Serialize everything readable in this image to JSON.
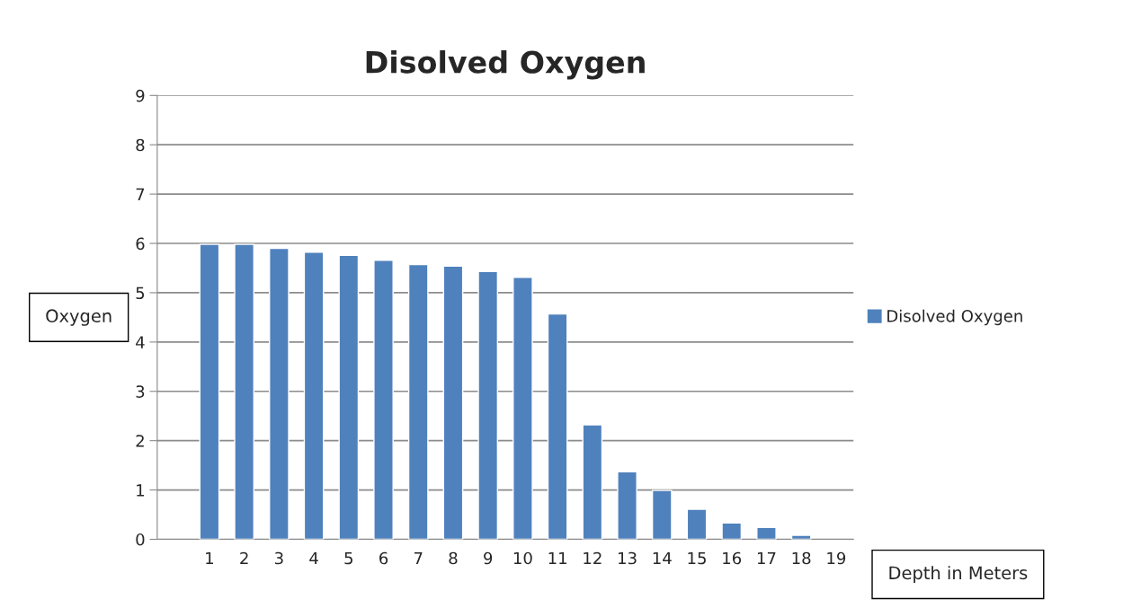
{
  "chart_data": {
    "type": "bar",
    "title": "Disolved Oxygen",
    "ylabel": "Oxygen",
    "xlabel": "Depth in Meters",
    "categories": [
      null,
      "1",
      "2",
      "3",
      "4",
      "5",
      "6",
      "7",
      "8",
      "9",
      "10",
      "11",
      "12",
      "13",
      "14",
      "15",
      "16",
      "17",
      "18",
      "19"
    ],
    "series": [
      {
        "name": "Disolved Oxygen",
        "color": "#4f81bd",
        "values": [
          null,
          5.98,
          5.98,
          5.9,
          5.82,
          5.76,
          5.66,
          5.57,
          5.54,
          5.43,
          5.31,
          4.57,
          2.32,
          1.37,
          0.99,
          0.61,
          0.33,
          0.24,
          0.08,
          null
        ]
      }
    ],
    "ylim": [
      0,
      9
    ],
    "yticks": [
      0,
      1,
      2,
      3,
      4,
      5,
      6,
      7,
      8,
      9
    ],
    "grid": "y",
    "legend": "right"
  }
}
